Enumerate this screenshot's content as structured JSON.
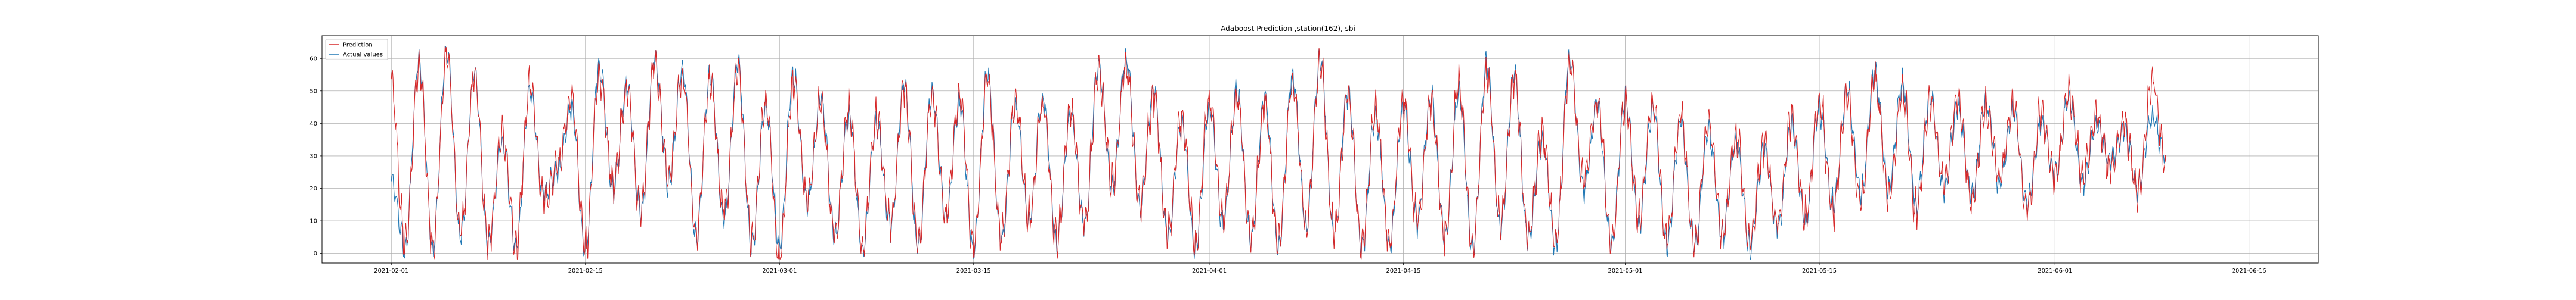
{
  "chart_data": {
    "type": "line",
    "title": "Adaboost Prediction ,station(162), sbi",
    "xlabel": "",
    "ylabel": "",
    "x_start": "2021-01-27",
    "x_end": "2021-06-20",
    "data_start": "2021-02-01",
    "data_end": "2021-06-09",
    "ylim": [
      -3,
      67
    ],
    "grid": true,
    "legend_position": "top-left",
    "x_ticks": [
      {
        "date": "2021-02-01",
        "label": "2021-02-01"
      },
      {
        "date": "2021-02-15",
        "label": "2021-02-15"
      },
      {
        "date": "2021-03-01",
        "label": "2021-03-01"
      },
      {
        "date": "2021-03-15",
        "label": "2021-03-15"
      },
      {
        "date": "2021-04-01",
        "label": "2021-04-01"
      },
      {
        "date": "2021-04-15",
        "label": "2021-04-15"
      },
      {
        "date": "2021-05-01",
        "label": "2021-05-01"
      },
      {
        "date": "2021-05-15",
        "label": "2021-05-15"
      },
      {
        "date": "2021-06-01",
        "label": "2021-06-01"
      },
      {
        "date": "2021-06-15",
        "label": "2021-06-15"
      }
    ],
    "y_ticks": [
      0,
      10,
      20,
      30,
      40,
      50,
      60
    ],
    "series": [
      {
        "name": "Actual values",
        "color": "#1f77b4",
        "points": [
          [
            "2021-02-01",
            22
          ],
          [
            "2021-02-02",
            2
          ],
          [
            "2021-02-03",
            60
          ],
          [
            "2021-02-04",
            2
          ],
          [
            "2021-02-05",
            63
          ],
          [
            "2021-02-06",
            5
          ],
          [
            "2021-02-07",
            55
          ],
          [
            "2021-02-08",
            3
          ],
          [
            "2021-02-09",
            35
          ],
          [
            "2021-02-10",
            2
          ],
          [
            "2021-02-11",
            50
          ],
          [
            "2021-02-12",
            18
          ],
          [
            "2021-02-13",
            25
          ],
          [
            "2021-02-14",
            45
          ],
          [
            "2021-02-15",
            1
          ],
          [
            "2021-02-16",
            58
          ],
          [
            "2021-02-17",
            20
          ],
          [
            "2021-02-18",
            52
          ],
          [
            "2021-02-19",
            12
          ],
          [
            "2021-02-20",
            60
          ],
          [
            "2021-02-21",
            22
          ],
          [
            "2021-02-22",
            57
          ],
          [
            "2021-02-23",
            5
          ],
          [
            "2021-02-24",
            55
          ],
          [
            "2021-02-25",
            10
          ],
          [
            "2021-02-26",
            58
          ],
          [
            "2021-02-27",
            2
          ],
          [
            "2021-02-28",
            45
          ],
          [
            "2021-03-01",
            3
          ],
          [
            "2021-03-02",
            55
          ],
          [
            "2021-03-03",
            15
          ],
          [
            "2021-03-04",
            48
          ],
          [
            "2021-03-05",
            5
          ],
          [
            "2021-03-06",
            43
          ],
          [
            "2021-03-07",
            2
          ],
          [
            "2021-03-08",
            40
          ],
          [
            "2021-03-09",
            8
          ],
          [
            "2021-03-10",
            52
          ],
          [
            "2021-03-11",
            2
          ],
          [
            "2021-03-12",
            50
          ],
          [
            "2021-03-13",
            12
          ],
          [
            "2021-03-14",
            46
          ],
          [
            "2021-03-15",
            1
          ],
          [
            "2021-03-16",
            55
          ],
          [
            "2021-03-17",
            4
          ],
          [
            "2021-03-18",
            45
          ],
          [
            "2021-03-19",
            10
          ],
          [
            "2021-03-20",
            48
          ],
          [
            "2021-03-21",
            3
          ],
          [
            "2021-03-22",
            42
          ],
          [
            "2021-03-23",
            8
          ],
          [
            "2021-03-24",
            58
          ],
          [
            "2021-03-25",
            20
          ],
          [
            "2021-03-26",
            60
          ],
          [
            "2021-03-27",
            15
          ],
          [
            "2021-03-28",
            50
          ],
          [
            "2021-03-29",
            5
          ],
          [
            "2021-03-30",
            40
          ],
          [
            "2021-03-31",
            2
          ],
          [
            "2021-04-01",
            45
          ],
          [
            "2021-04-02",
            10
          ],
          [
            "2021-04-03",
            50
          ],
          [
            "2021-04-04",
            4
          ],
          [
            "2021-04-05",
            48
          ],
          [
            "2021-04-06",
            2
          ],
          [
            "2021-04-07",
            55
          ],
          [
            "2021-04-08",
            8
          ],
          [
            "2021-04-09",
            60
          ],
          [
            "2021-04-10",
            5
          ],
          [
            "2021-04-11",
            50
          ],
          [
            "2021-04-12",
            2
          ],
          [
            "2021-04-13",
            42
          ],
          [
            "2021-04-14",
            3
          ],
          [
            "2021-04-15",
            45
          ],
          [
            "2021-04-16",
            10
          ],
          [
            "2021-04-17",
            48
          ],
          [
            "2021-04-18",
            5
          ],
          [
            "2021-04-19",
            50
          ],
          [
            "2021-04-20",
            2
          ],
          [
            "2021-04-21",
            58
          ],
          [
            "2021-04-22",
            8
          ],
          [
            "2021-04-23",
            55
          ],
          [
            "2021-04-24",
            4
          ],
          [
            "2021-04-25",
            35
          ],
          [
            "2021-04-26",
            3
          ],
          [
            "2021-04-27",
            60
          ],
          [
            "2021-04-28",
            20
          ],
          [
            "2021-04-29",
            45
          ],
          [
            "2021-04-30",
            2
          ],
          [
            "2021-05-01",
            48
          ],
          [
            "2021-05-02",
            10
          ],
          [
            "2021-05-03",
            45
          ],
          [
            "2021-05-04",
            3
          ],
          [
            "2021-05-05",
            40
          ],
          [
            "2021-05-06",
            2
          ],
          [
            "2021-05-07",
            38
          ],
          [
            "2021-05-08",
            5
          ],
          [
            "2021-05-09",
            35
          ],
          [
            "2021-05-10",
            2
          ],
          [
            "2021-05-11",
            32
          ],
          [
            "2021-05-12",
            8
          ],
          [
            "2021-05-13",
            40
          ],
          [
            "2021-05-14",
            10
          ],
          [
            "2021-05-15",
            45
          ],
          [
            "2021-05-16",
            15
          ],
          [
            "2021-05-17",
            50
          ],
          [
            "2021-05-18",
            18
          ],
          [
            "2021-05-19",
            55
          ],
          [
            "2021-05-20",
            20
          ],
          [
            "2021-05-21",
            52
          ],
          [
            "2021-05-22",
            15
          ],
          [
            "2021-05-23",
            48
          ],
          [
            "2021-05-24",
            20
          ],
          [
            "2021-05-25",
            45
          ],
          [
            "2021-05-26",
            18
          ],
          [
            "2021-05-27",
            47
          ],
          [
            "2021-05-28",
            22
          ],
          [
            "2021-05-29",
            44
          ],
          [
            "2021-05-30",
            15
          ],
          [
            "2021-05-31",
            40
          ],
          [
            "2021-06-01",
            25
          ],
          [
            "2021-06-02",
            48
          ],
          [
            "2021-06-03",
            22
          ],
          [
            "2021-06-04",
            40
          ],
          [
            "2021-06-05",
            28
          ],
          [
            "2021-06-06",
            38
          ],
          [
            "2021-06-07",
            20
          ],
          [
            "2021-06-08",
            42
          ],
          [
            "2021-06-09",
            30
          ]
        ]
      },
      {
        "name": "Prediction",
        "color": "#d62728",
        "points": [
          [
            "2021-02-01",
            52
          ],
          [
            "2021-02-02",
            3
          ],
          [
            "2021-02-03",
            58
          ],
          [
            "2021-02-04",
            3
          ],
          [
            "2021-02-05",
            61
          ],
          [
            "2021-02-06",
            6
          ],
          [
            "2021-02-07",
            54
          ],
          [
            "2021-02-08",
            4
          ],
          [
            "2021-02-09",
            37
          ],
          [
            "2021-02-10",
            3
          ],
          [
            "2021-02-11",
            52
          ],
          [
            "2021-02-12",
            16
          ],
          [
            "2021-02-13",
            27
          ],
          [
            "2021-02-14",
            47
          ],
          [
            "2021-02-15",
            2
          ],
          [
            "2021-02-16",
            56
          ],
          [
            "2021-02-17",
            22
          ],
          [
            "2021-02-18",
            50
          ],
          [
            "2021-02-19",
            13
          ],
          [
            "2021-02-20",
            58
          ],
          [
            "2021-02-21",
            24
          ],
          [
            "2021-02-22",
            55
          ],
          [
            "2021-02-23",
            6
          ],
          [
            "2021-02-24",
            53
          ],
          [
            "2021-02-25",
            12
          ],
          [
            "2021-02-26",
            56
          ],
          [
            "2021-02-27",
            3
          ],
          [
            "2021-02-28",
            47
          ],
          [
            "2021-03-01",
            -2
          ],
          [
            "2021-03-02",
            53
          ],
          [
            "2021-03-03",
            17
          ],
          [
            "2021-03-04",
            46
          ],
          [
            "2021-03-05",
            6
          ],
          [
            "2021-03-06",
            45
          ],
          [
            "2021-03-07",
            3
          ],
          [
            "2021-03-08",
            42
          ],
          [
            "2021-03-09",
            9
          ],
          [
            "2021-03-10",
            50
          ],
          [
            "2021-03-11",
            3
          ],
          [
            "2021-03-12",
            48
          ],
          [
            "2021-03-13",
            13
          ],
          [
            "2021-03-14",
            48
          ],
          [
            "2021-03-15",
            2
          ],
          [
            "2021-03-16",
            53
          ],
          [
            "2021-03-17",
            5
          ],
          [
            "2021-03-18",
            47
          ],
          [
            "2021-03-19",
            11
          ],
          [
            "2021-03-20",
            46
          ],
          [
            "2021-03-21",
            4
          ],
          [
            "2021-03-22",
            44
          ],
          [
            "2021-03-23",
            9
          ],
          [
            "2021-03-24",
            56
          ],
          [
            "2021-03-25",
            22
          ],
          [
            "2021-03-26",
            58
          ],
          [
            "2021-03-27",
            16
          ],
          [
            "2021-03-28",
            48
          ],
          [
            "2021-03-29",
            6
          ],
          [
            "2021-03-30",
            42
          ],
          [
            "2021-03-31",
            3
          ],
          [
            "2021-04-01",
            47
          ],
          [
            "2021-04-02",
            11
          ],
          [
            "2021-04-03",
            48
          ],
          [
            "2021-04-04",
            5
          ],
          [
            "2021-04-05",
            46
          ],
          [
            "2021-04-06",
            3
          ],
          [
            "2021-04-07",
            53
          ],
          [
            "2021-04-08",
            9
          ],
          [
            "2021-04-09",
            58
          ],
          [
            "2021-04-10",
            6
          ],
          [
            "2021-04-11",
            48
          ],
          [
            "2021-04-12",
            3
          ],
          [
            "2021-04-13",
            44
          ],
          [
            "2021-04-14",
            4
          ],
          [
            "2021-04-15",
            47
          ],
          [
            "2021-04-16",
            11
          ],
          [
            "2021-04-17",
            46
          ],
          [
            "2021-04-18",
            6
          ],
          [
            "2021-04-19",
            52
          ],
          [
            "2021-04-20",
            3
          ],
          [
            "2021-04-21",
            56
          ],
          [
            "2021-04-22",
            9
          ],
          [
            "2021-04-23",
            53
          ],
          [
            "2021-04-24",
            5
          ],
          [
            "2021-04-25",
            37
          ],
          [
            "2021-04-26",
            4
          ],
          [
            "2021-04-27",
            58
          ],
          [
            "2021-04-28",
            22
          ],
          [
            "2021-04-29",
            47
          ],
          [
            "2021-04-30",
            3
          ],
          [
            "2021-05-01",
            46
          ],
          [
            "2021-05-02",
            11
          ],
          [
            "2021-05-03",
            47
          ],
          [
            "2021-05-04",
            4
          ],
          [
            "2021-05-05",
            42
          ],
          [
            "2021-05-06",
            3
          ],
          [
            "2021-05-07",
            40
          ],
          [
            "2021-05-08",
            6
          ],
          [
            "2021-05-09",
            37
          ],
          [
            "2021-05-10",
            3
          ],
          [
            "2021-05-11",
            34
          ],
          [
            "2021-05-12",
            9
          ],
          [
            "2021-05-13",
            42
          ],
          [
            "2021-05-14",
            11
          ],
          [
            "2021-05-15",
            47
          ],
          [
            "2021-05-16",
            13
          ],
          [
            "2021-05-17",
            48
          ],
          [
            "2021-05-18",
            16
          ],
          [
            "2021-05-19",
            53
          ],
          [
            "2021-05-20",
            18
          ],
          [
            "2021-05-21",
            50
          ],
          [
            "2021-05-22",
            13
          ],
          [
            "2021-05-23",
            46
          ],
          [
            "2021-05-24",
            22
          ],
          [
            "2021-05-25",
            47
          ],
          [
            "2021-05-26",
            16
          ],
          [
            "2021-05-27",
            45
          ],
          [
            "2021-05-28",
            24
          ],
          [
            "2021-05-29",
            46
          ],
          [
            "2021-05-30",
            13
          ],
          [
            "2021-05-31",
            42
          ],
          [
            "2021-06-01",
            23
          ],
          [
            "2021-06-02",
            50
          ],
          [
            "2021-06-03",
            24
          ],
          [
            "2021-06-04",
            42
          ],
          [
            "2021-06-05",
            26
          ],
          [
            "2021-06-06",
            40
          ],
          [
            "2021-06-07",
            18
          ],
          [
            "2021-06-08",
            53
          ],
          [
            "2021-06-09",
            28
          ]
        ]
      }
    ]
  }
}
